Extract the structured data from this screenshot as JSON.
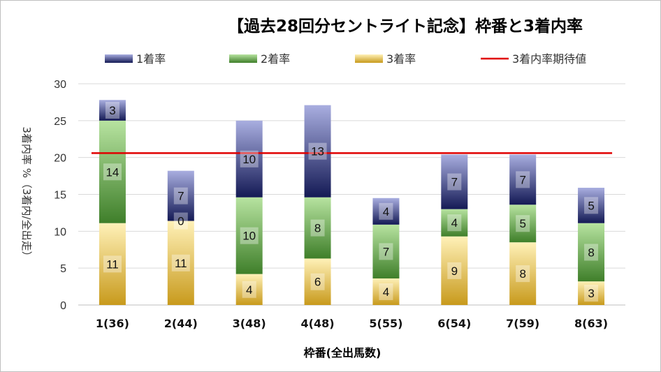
{
  "chart_data": {
    "type": "bar",
    "stacked": true,
    "title": "【過去28回分セントライト記念】枠番と3着内率",
    "xlabel": "枠番(全出馬数)",
    "ylabel": "3着内率 %（3着内/全出走）",
    "ylim": [
      0,
      30
    ],
    "yticks": [
      0,
      5,
      10,
      15,
      20,
      25,
      30
    ],
    "categories": [
      "1(36)",
      "2(44)",
      "3(48)",
      "4(48)",
      "5(55)",
      "6(54)",
      "7(59)",
      "8(63)"
    ],
    "series": [
      {
        "name": "3着率",
        "color": "#d4a52e",
        "labels": [
          11,
          11,
          4,
          6,
          4,
          9,
          8,
          3
        ],
        "values": [
          11.1,
          11.4,
          4.2,
          6.3,
          3.6,
          9.3,
          8.5,
          3.2
        ]
      },
      {
        "name": "2着率",
        "color": "#6aa84f",
        "labels": [
          14,
          0,
          10,
          8,
          7,
          4,
          5,
          8
        ],
        "values": [
          13.9,
          0.0,
          10.4,
          8.3,
          7.3,
          3.7,
          5.1,
          7.9
        ]
      },
      {
        "name": "1着率",
        "color": "#2e3a8c",
        "labels": [
          3,
          7,
          10,
          13,
          4,
          7,
          7,
          5
        ],
        "values": [
          2.8,
          6.8,
          10.4,
          12.5,
          3.6,
          7.4,
          6.8,
          4.8
        ]
      }
    ],
    "reference_line": {
      "name": "3着内率期待値",
      "value": 20.6,
      "color": "#e00000"
    },
    "legend": {
      "position": "top",
      "order": [
        "1着率",
        "2着率",
        "3着率",
        "3着内率期待値"
      ]
    },
    "grid": {
      "y": true,
      "x": false
    }
  }
}
